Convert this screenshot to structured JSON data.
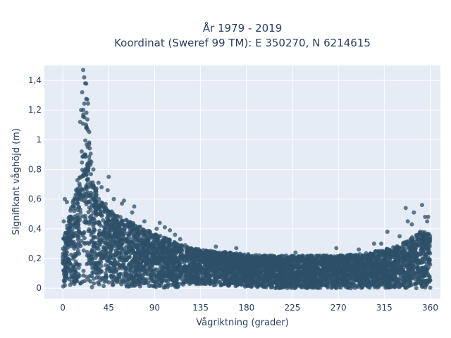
{
  "chart_data": {
    "type": "scatter",
    "title_line1": "År 1979 - 2019",
    "title_line2": "Koordinat (Sweref 99 TM): E 350270, N 6214615",
    "xlabel": "Vågriktning (grader)",
    "ylabel": "Signifikant våghöjd (m)",
    "xlim": [
      -18,
      370
    ],
    "ylim": [
      -0.07,
      1.5
    ],
    "xticks": [
      0,
      45,
      90,
      135,
      180,
      225,
      270,
      315,
      360
    ],
    "xtick_labels": [
      "0",
      "45",
      "90",
      "135",
      "180",
      "225",
      "270",
      "315",
      "360"
    ],
    "yticks": [
      0,
      0.2,
      0.4,
      0.6,
      0.8,
      1.0,
      1.2,
      1.4
    ],
    "ytick_labels": [
      "0",
      "0,2",
      "0,4",
      "0,6",
      "0,8",
      "1",
      "1,2",
      "1,4"
    ],
    "grid": true,
    "marker_color": "#2e5068",
    "background_color": "#e5ecf6",
    "envelope": {
      "direction": [
        0,
        5,
        10,
        15,
        18,
        20,
        22,
        24,
        26,
        28,
        30,
        35,
        40,
        45,
        50,
        60,
        70,
        80,
        90,
        100,
        110,
        120,
        135,
        150,
        165,
        180,
        200,
        225,
        250,
        270,
        290,
        300,
        315,
        325,
        335,
        340,
        345,
        350,
        355,
        360
      ],
      "max_height": [
        0.33,
        0.45,
        0.6,
        0.75,
        0.95,
        1.2,
        1.45,
        1.4,
        1.1,
        0.85,
        0.7,
        0.62,
        0.58,
        0.55,
        0.5,
        0.47,
        0.44,
        0.4,
        0.37,
        0.34,
        0.31,
        0.28,
        0.26,
        0.25,
        0.24,
        0.23,
        0.22,
        0.22,
        0.22,
        0.22,
        0.23,
        0.24,
        0.26,
        0.28,
        0.31,
        0.33,
        0.36,
        0.38,
        0.38,
        0.36
      ]
    },
    "outliers": [
      {
        "x": 1,
        "y": 0.45
      },
      {
        "x": 2,
        "y": 0.6
      },
      {
        "x": 4,
        "y": 0.58
      },
      {
        "x": 18,
        "y": 0.62
      },
      {
        "x": 20,
        "y": 1.47
      },
      {
        "x": 21,
        "y": 1.42
      },
      {
        "x": 19,
        "y": 1.32
      },
      {
        "x": 22,
        "y": 1.38
      },
      {
        "x": 18,
        "y": 1.2
      },
      {
        "x": 17,
        "y": 1.12
      },
      {
        "x": 23,
        "y": 1.08
      },
      {
        "x": 28,
        "y": 0.85
      },
      {
        "x": 30,
        "y": 0.8
      },
      {
        "x": 33,
        "y": 0.67
      },
      {
        "x": 35,
        "y": 0.71
      },
      {
        "x": 38,
        "y": 0.68
      },
      {
        "x": 44,
        "y": 0.66
      },
      {
        "x": 45,
        "y": 0.75
      },
      {
        "x": 50,
        "y": 0.6
      },
      {
        "x": 58,
        "y": 0.57
      },
      {
        "x": 60,
        "y": 0.59
      },
      {
        "x": 68,
        "y": 0.51
      },
      {
        "x": 70,
        "y": 0.55
      },
      {
        "x": 80,
        "y": 0.45
      },
      {
        "x": 92,
        "y": 0.4
      },
      {
        "x": 95,
        "y": 0.44
      },
      {
        "x": 100,
        "y": 0.41
      },
      {
        "x": 105,
        "y": 0.39
      },
      {
        "x": 110,
        "y": 0.36
      },
      {
        "x": 115,
        "y": 0.33
      },
      {
        "x": 120,
        "y": 0.29
      },
      {
        "x": 150,
        "y": 0.28
      },
      {
        "x": 170,
        "y": 0.27
      },
      {
        "x": 228,
        "y": 0.24
      },
      {
        "x": 268,
        "y": 0.27
      },
      {
        "x": 290,
        "y": 0.26
      },
      {
        "x": 305,
        "y": 0.3
      },
      {
        "x": 312,
        "y": 0.3
      },
      {
        "x": 318,
        "y": 0.38
      },
      {
        "x": 330,
        "y": 0.35
      },
      {
        "x": 336,
        "y": 0.54
      },
      {
        "x": 338,
        "y": 0.45
      },
      {
        "x": 342,
        "y": 0.43
      },
      {
        "x": 344,
        "y": 0.51
      },
      {
        "x": 352,
        "y": 0.56
      },
      {
        "x": 355,
        "y": 0.48
      },
      {
        "x": 357,
        "y": 0.45
      },
      {
        "x": 358,
        "y": 0.48
      },
      {
        "x": 40,
        "y": 0.015
      },
      {
        "x": 95,
        "y": 0.015
      },
      {
        "x": 100,
        "y": 0.005
      },
      {
        "x": 148,
        "y": 0.02
      },
      {
        "x": 160,
        "y": 0.035
      },
      {
        "x": 196,
        "y": 0.055
      },
      {
        "x": 256,
        "y": 0.065
      },
      {
        "x": 270,
        "y": 0.06
      },
      {
        "x": 305,
        "y": 0.055
      },
      {
        "x": 320,
        "y": 0.045
      },
      {
        "x": 340,
        "y": 0.02
      },
      {
        "x": 355,
        "y": 0.005
      }
    ]
  }
}
